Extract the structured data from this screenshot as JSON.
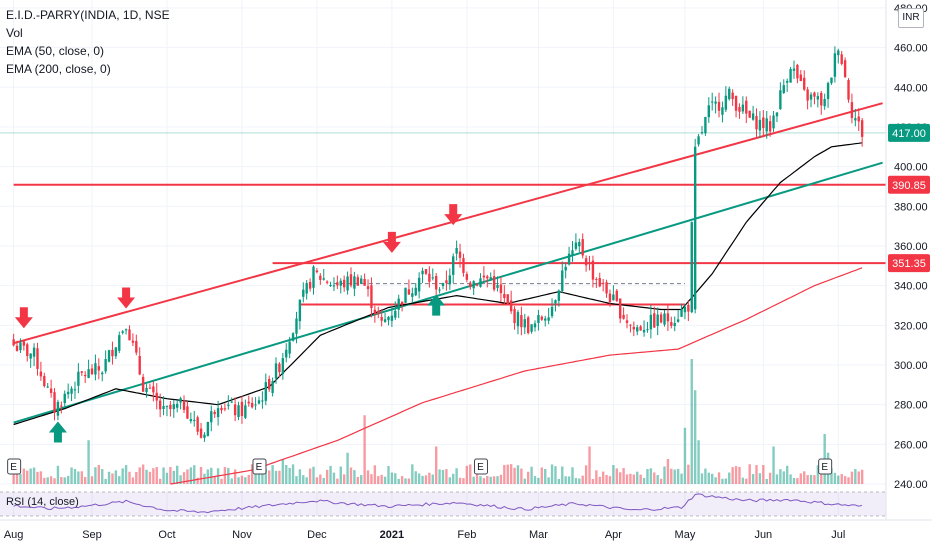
{
  "legend": {
    "symbol": "E.I.D.-PARRY(INDIA, 1D, NSE",
    "volume": "Vol",
    "ema50": "EMA (50, close, 0)",
    "ema200": "EMA (200, close, 0)"
  },
  "rsi_label": "RSI (14, close)",
  "currency": "INR",
  "chart_data": {
    "type": "candlestick",
    "symbol": "E.I.D.-PARRY(INDIA",
    "timeframe": "1D",
    "exchange": "NSE",
    "y_ticks": [
      240,
      260,
      280,
      300,
      320,
      340,
      360,
      380,
      400,
      420,
      440,
      460,
      480
    ],
    "y_tick_labels": [
      "240.00",
      "260.00",
      "280.00",
      "300.00",
      "320.00",
      "340.00",
      "360.00",
      "380.00",
      "400.00",
      "420.00",
      "440.00",
      "460.00",
      "480.00"
    ],
    "ylim": [
      238,
      484
    ],
    "x_labels": [
      {
        "label": "Aug",
        "day": 0
      },
      {
        "label": "Sep",
        "day": 23
      },
      {
        "label": "Oct",
        "day": 45
      },
      {
        "label": "Nov",
        "day": 67
      },
      {
        "label": "Dec",
        "day": 89
      },
      {
        "label": "2021",
        "day": 111
      },
      {
        "label": "Feb",
        "day": 133
      },
      {
        "label": "Mar",
        "day": 154
      },
      {
        "label": "Apr",
        "day": 176
      },
      {
        "label": "May",
        "day": 197
      },
      {
        "label": "Jun",
        "day": 220
      },
      {
        "label": "Jul",
        "day": 242
      }
    ],
    "price_tags": [
      {
        "value": "417.00",
        "price": 417,
        "color": "#089981"
      },
      {
        "value": "390.85",
        "price": 390.85,
        "color": "#f23645"
      },
      {
        "value": "351.35",
        "price": 351.35,
        "color": "#f23645"
      }
    ],
    "earnings_markers_days": [
      0,
      72,
      137,
      238
    ],
    "horizontal_levels": [
      {
        "price": 390.85,
        "color": "#f23645",
        "from_day": 0,
        "to_day": 255
      },
      {
        "price": 351.35,
        "color": "#f23645",
        "from_day": 76,
        "to_day": 255
      },
      {
        "price": 330.5,
        "color": "#f23645",
        "from_day": 84,
        "to_day": 197
      },
      {
        "price": 341,
        "color": "#787b86",
        "dashed": true,
        "from_day": 94,
        "to_day": 197
      }
    ],
    "trend_lines": [
      {
        "color": "#f23645",
        "from": {
          "day": 0,
          "price": 311
        },
        "to": {
          "day": 255,
          "price": 432
        }
      },
      {
        "color": "#089981",
        "from": {
          "day": 0,
          "price": 271
        },
        "to": {
          "day": 255,
          "price": 402
        }
      }
    ],
    "signals": [
      {
        "kind": "sell",
        "day": 3,
        "price": 318
      },
      {
        "kind": "sell",
        "day": 33,
        "price": 328
      },
      {
        "kind": "sell",
        "day": 111,
        "price": 356
      },
      {
        "kind": "sell",
        "day": 129,
        "price": 370
      },
      {
        "kind": "buy",
        "day": 13,
        "price": 272
      },
      {
        "kind": "buy",
        "day": 124,
        "price": 336
      }
    ],
    "candles_ohlc_anchors": [
      {
        "day": 0,
        "close": 310
      },
      {
        "day": 6,
        "close": 305
      },
      {
        "day": 12,
        "close": 278
      },
      {
        "day": 20,
        "close": 295
      },
      {
        "day": 26,
        "close": 298
      },
      {
        "day": 33,
        "close": 322
      },
      {
        "day": 38,
        "close": 290
      },
      {
        "day": 44,
        "close": 276
      },
      {
        "day": 50,
        "close": 280
      },
      {
        "day": 55,
        "close": 264
      },
      {
        "day": 60,
        "close": 282
      },
      {
        "day": 66,
        "close": 276
      },
      {
        "day": 72,
        "close": 282
      },
      {
        "day": 78,
        "close": 300
      },
      {
        "day": 84,
        "close": 330
      },
      {
        "day": 88,
        "close": 346
      },
      {
        "day": 95,
        "close": 340
      },
      {
        "day": 102,
        "close": 344
      },
      {
        "day": 108,
        "close": 320
      },
      {
        "day": 114,
        "close": 334
      },
      {
        "day": 120,
        "close": 346
      },
      {
        "day": 126,
        "close": 338
      },
      {
        "day": 130,
        "close": 357
      },
      {
        "day": 134,
        "close": 342
      },
      {
        "day": 140,
        "close": 344
      },
      {
        "day": 146,
        "close": 326
      },
      {
        "day": 152,
        "close": 318
      },
      {
        "day": 158,
        "close": 330
      },
      {
        "day": 162,
        "close": 352
      },
      {
        "day": 166,
        "close": 360
      },
      {
        "day": 170,
        "close": 346
      },
      {
        "day": 176,
        "close": 332
      },
      {
        "day": 182,
        "close": 318
      },
      {
        "day": 188,
        "close": 322
      },
      {
        "day": 194,
        "close": 324
      },
      {
        "day": 198,
        "close": 330
      },
      {
        "day": 200,
        "close": 408
      },
      {
        "day": 204,
        "close": 428
      },
      {
        "day": 210,
        "close": 436
      },
      {
        "day": 216,
        "close": 424
      },
      {
        "day": 222,
        "close": 420
      },
      {
        "day": 228,
        "close": 452
      },
      {
        "day": 232,
        "close": 436
      },
      {
        "day": 238,
        "close": 432
      },
      {
        "day": 242,
        "close": 462
      },
      {
        "day": 246,
        "close": 428
      },
      {
        "day": 249,
        "close": 417
      }
    ],
    "ema50_anchors": [
      {
        "day": 0,
        "price": 270
      },
      {
        "day": 15,
        "price": 278
      },
      {
        "day": 30,
        "price": 288
      },
      {
        "day": 45,
        "price": 283
      },
      {
        "day": 60,
        "price": 280
      },
      {
        "day": 75,
        "price": 289
      },
      {
        "day": 90,
        "price": 315
      },
      {
        "day": 110,
        "price": 329
      },
      {
        "day": 130,
        "price": 335
      },
      {
        "day": 145,
        "price": 331
      },
      {
        "day": 160,
        "price": 337
      },
      {
        "day": 175,
        "price": 331
      },
      {
        "day": 190,
        "price": 328
      },
      {
        "day": 196,
        "price": 328
      },
      {
        "day": 205,
        "price": 346
      },
      {
        "day": 215,
        "price": 372
      },
      {
        "day": 225,
        "price": 392
      },
      {
        "day": 235,
        "price": 405
      },
      {
        "day": 240,
        "price": 410
      },
      {
        "day": 249,
        "price": 412
      }
    ],
    "ema200_anchors": [
      {
        "day": 46,
        "price": 240
      },
      {
        "day": 70,
        "price": 247
      },
      {
        "day": 95,
        "price": 262
      },
      {
        "day": 120,
        "price": 281
      },
      {
        "day": 150,
        "price": 297
      },
      {
        "day": 175,
        "price": 305
      },
      {
        "day": 195,
        "price": 308
      },
      {
        "day": 215,
        "price": 323
      },
      {
        "day": 235,
        "price": 340
      },
      {
        "day": 249,
        "price": 349
      }
    ],
    "rsi_anchors": [
      {
        "day": 0,
        "value": 52
      },
      {
        "day": 10,
        "value": 45
      },
      {
        "day": 20,
        "value": 50
      },
      {
        "day": 33,
        "value": 60
      },
      {
        "day": 45,
        "value": 42
      },
      {
        "day": 55,
        "value": 38
      },
      {
        "day": 70,
        "value": 48
      },
      {
        "day": 88,
        "value": 62
      },
      {
        "day": 100,
        "value": 55
      },
      {
        "day": 110,
        "value": 50
      },
      {
        "day": 130,
        "value": 58
      },
      {
        "day": 150,
        "value": 44
      },
      {
        "day": 165,
        "value": 56
      },
      {
        "day": 182,
        "value": 42
      },
      {
        "day": 196,
        "value": 48
      },
      {
        "day": 200,
        "value": 75
      },
      {
        "day": 215,
        "value": 62
      },
      {
        "day": 228,
        "value": 64
      },
      {
        "day": 240,
        "value": 55
      },
      {
        "day": 249,
        "value": 50
      }
    ],
    "volume_spikes": [
      {
        "day": 22,
        "vol": 0.35
      },
      {
        "day": 79,
        "vol": 0.2
      },
      {
        "day": 98,
        "vol": 0.25
      },
      {
        "day": 103,
        "vol": 0.55
      },
      {
        "day": 124,
        "vol": 0.3
      },
      {
        "day": 169,
        "vol": 0.3
      },
      {
        "day": 192,
        "vol": 0.2
      },
      {
        "day": 197,
        "vol": 0.45
      },
      {
        "day": 199,
        "vol": 1.0
      },
      {
        "day": 200,
        "vol": 0.75
      },
      {
        "day": 201,
        "vol": 0.35
      },
      {
        "day": 223,
        "vol": 0.3
      },
      {
        "day": 238,
        "vol": 0.4
      },
      {
        "day": 239,
        "vol": 0.25
      }
    ]
  }
}
